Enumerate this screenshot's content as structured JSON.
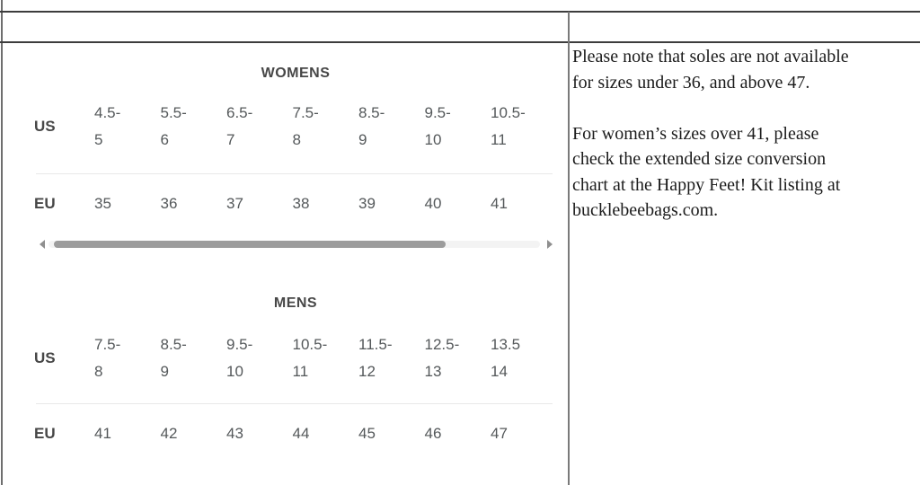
{
  "size_chart": {
    "womens": {
      "title": "WOMENS",
      "row_label_us": "US",
      "row_label_eu": "EU",
      "us": [
        [
          "4.5-",
          "5"
        ],
        [
          "5.5-",
          "6"
        ],
        [
          "6.5-",
          "7"
        ],
        [
          "7.5-",
          "8"
        ],
        [
          "8.5-",
          "9"
        ],
        [
          "9.5-",
          "10"
        ],
        [
          "10.5-",
          "11"
        ]
      ],
      "eu": [
        "35",
        "36",
        "37",
        "38",
        "39",
        "40",
        "41"
      ]
    },
    "mens": {
      "title": "MENS",
      "row_label_us": "US",
      "row_label_eu": "EU",
      "us": [
        [
          "7.5-",
          "8"
        ],
        [
          "8.5-",
          "9"
        ],
        [
          "9.5-",
          "10"
        ],
        [
          "10.5-",
          "11"
        ],
        [
          "11.5-",
          "12"
        ],
        [
          "12.5-",
          "13"
        ],
        [
          "13.5",
          "14"
        ]
      ],
      "eu": [
        "41",
        "42",
        "43",
        "44",
        "45",
        "46",
        "47"
      ]
    }
  },
  "note": {
    "paragraph1": [
      "Please note that soles are not available",
      "for sizes under 36, and above 47."
    ],
    "paragraph2": [
      "For women’s sizes over 41, please",
      "check the extended size conversion",
      "chart at the Happy Feet! Kit listing at",
      "bucklebeebags.com."
    ]
  },
  "colors": {
    "table_border_dark": "#3d3d3d",
    "table_border_gray": "#7a7a7a",
    "chart_text": "#54585a",
    "chart_label": "#474747",
    "row_separator": "#e9e9e9",
    "scrollbar_thumb": "#9c9c9c",
    "scrollbar_track": "#f3f3f3",
    "note_text": "#1b1b1b"
  }
}
